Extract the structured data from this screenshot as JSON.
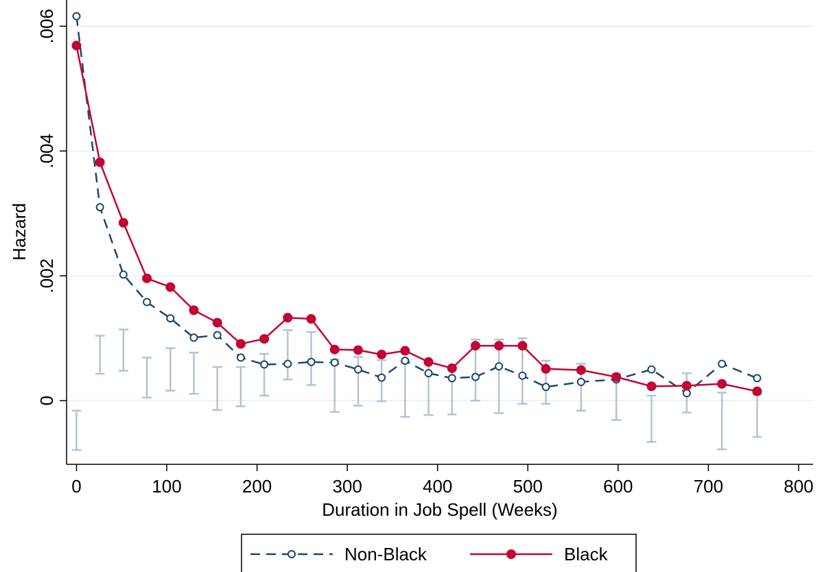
{
  "chart_data": {
    "type": "line",
    "xlabel": "Duration in Job Spell (Weeks)",
    "ylabel": "Hazard",
    "x": [
      0,
      26,
      52,
      78,
      104,
      130,
      156,
      182,
      208,
      234,
      260,
      286,
      312,
      338,
      364,
      390,
      416,
      442,
      468,
      494,
      520,
      559,
      598,
      637,
      676,
      715,
      754
    ],
    "series": [
      {
        "name": "Non-Black",
        "color": "#1a476f",
        "dashed": true,
        "marker": "hollow-circle",
        "values": [
          0.00616,
          0.0031,
          0.00202,
          0.00158,
          0.00132,
          0.00101,
          0.00105,
          0.00069,
          0.00058,
          0.00059,
          0.00062,
          0.00061,
          0.0005,
          0.00037,
          0.00064,
          0.00044,
          0.00036,
          0.00038,
          0.00055,
          0.0004,
          0.00022,
          0.0003,
          0.00034,
          0.0005,
          0.00012,
          0.00059,
          0.00036
        ]
      },
      {
        "name": "Black",
        "color": "#c10534",
        "dashed": false,
        "marker": "filled-circle",
        "values": [
          0.00569,
          0.00382,
          0.00285,
          0.00196,
          0.00182,
          0.00145,
          0.00125,
          0.00091,
          0.00099,
          0.00133,
          0.00131,
          0.00082,
          0.00081,
          0.00074,
          0.0008,
          0.00062,
          0.00052,
          0.00088,
          0.00088,
          0.00088,
          0.00051,
          0.00049,
          0.00038,
          0.00023,
          0.00024,
          0.00027,
          0.00015
        ]
      }
    ],
    "ci": {
      "color": "#b4c3d0",
      "high": [
        -0.00016,
        0.00104,
        0.00114,
        0.00069,
        0.00084,
        0.00077,
        0.00054,
        0.00054,
        0.00075,
        0.00113,
        0.0011,
        0.00066,
        0.0007,
        0.00065,
        0.00063,
        0.00062,
        0.00054,
        0.00098,
        0.00098,
        0.001,
        0.00064,
        0.00059,
        0.00043,
        8e-05,
        0.00044,
        0.00013,
        0.0001
      ],
      "low": [
        -0.00079,
        0.00043,
        0.00048,
        5e-05,
        0.00016,
        0.00011,
        -0.00015,
        -9e-05,
        8e-05,
        0.00034,
        0.00025,
        -0.00018,
        -8e-05,
        -1e-05,
        -0.00026,
        -0.00023,
        -0.00022,
        0,
        -0.0002,
        -5e-05,
        -5e-05,
        -0.00016,
        -0.00031,
        -0.00066,
        -0.00019,
        -0.00078,
        -0.00058
      ]
    },
    "xlim": [
      -11,
      816
    ],
    "ylim": [
      -0.00102,
      0.00642
    ],
    "xticks": [
      0,
      100,
      200,
      300,
      400,
      500,
      600,
      700,
      800
    ],
    "yticks": [
      0,
      {
        "value": 0.002,
        "label": ".002"
      },
      {
        "value": 0.004,
        "label": ".004"
      },
      {
        "value": 0.006,
        "label": ".006"
      }
    ],
    "grid": true,
    "legend": "bottom"
  }
}
